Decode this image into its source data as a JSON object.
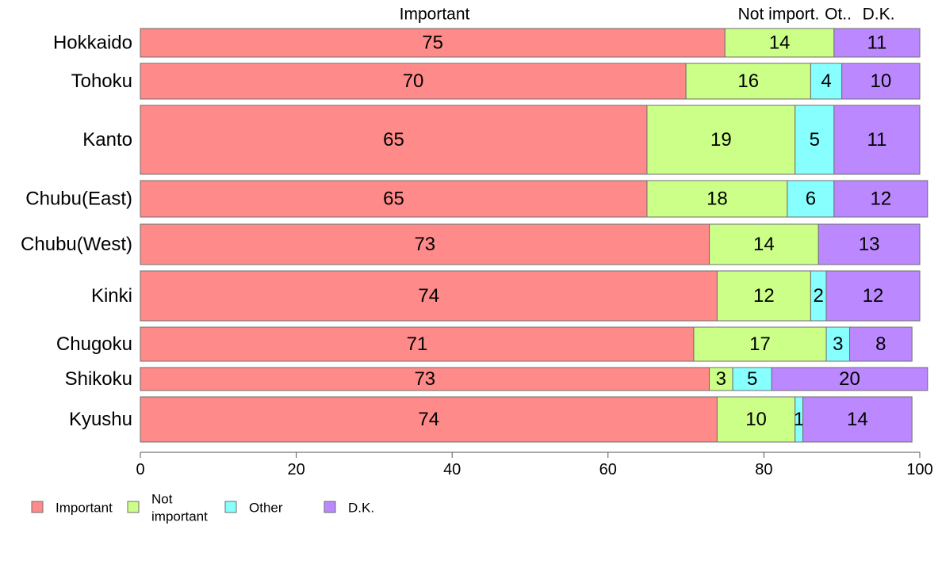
{
  "chart_data": {
    "type": "bar",
    "orientation": "horizontal",
    "stacked": true,
    "categories": [
      "Hokkaido",
      "Tohoku",
      "Kanto",
      "Chubu(East)",
      "Chubu(West)",
      "Kinki",
      "Chugoku",
      "Shikoku",
      "Kyushu"
    ],
    "series": [
      {
        "name": "Important",
        "color": "#ff8a8a",
        "values": [
          75,
          70,
          65,
          65,
          73,
          74,
          71,
          73,
          74
        ]
      },
      {
        "name": "Not important",
        "color": "#ccff88",
        "values": [
          14,
          16,
          19,
          18,
          14,
          12,
          17,
          3,
          10
        ]
      },
      {
        "name": "Other",
        "color": "#88ffff",
        "values": [
          0,
          4,
          5,
          6,
          0,
          2,
          3,
          5,
          1
        ]
      },
      {
        "name": "D.K.",
        "color": "#bb88ff",
        "values": [
          11,
          10,
          11,
          12,
          13,
          12,
          8,
          20,
          14
        ]
      }
    ],
    "value_labels": [
      [
        "75",
        "14",
        "",
        "11"
      ],
      [
        "70",
        "16",
        "4",
        "10"
      ],
      [
        "65",
        "19",
        "5",
        "11"
      ],
      [
        "65",
        "18",
        "6",
        "12"
      ],
      [
        "73",
        "14",
        "",
        "13"
      ],
      [
        "74",
        "12",
        "2",
        "12"
      ],
      [
        "71",
        "17",
        "3",
        "8"
      ],
      [
        "73",
        "3",
        "5",
        "20"
      ],
      [
        "74",
        "10",
        "1",
        "14"
      ]
    ],
    "column_headers": [
      "Important",
      "Not import.",
      "Ot..",
      "D.K."
    ],
    "legend_labels": [
      [
        "Important"
      ],
      [
        "Not",
        "important"
      ],
      [
        "Other"
      ],
      [
        "D.K."
      ]
    ],
    "x_ticks": [
      "0",
      "20",
      "40",
      "60",
      "80",
      "100"
    ],
    "xlim": [
      0,
      100
    ],
    "grid": false,
    "legend_position": "bottom-left"
  }
}
